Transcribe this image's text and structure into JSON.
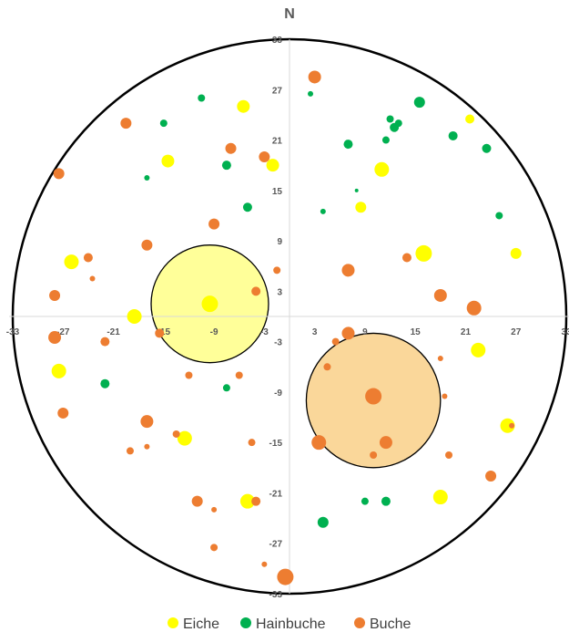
{
  "chart_data": {
    "type": "scatter",
    "title": "N",
    "xlim": [
      -33,
      33
    ],
    "ylim": [
      -33,
      33
    ],
    "x_ticks": [
      -33,
      -27,
      -21,
      -15,
      -9,
      -3,
      3,
      9,
      15,
      21,
      27,
      33
    ],
    "y_ticks": [
      33,
      27,
      21,
      15,
      9,
      3,
      -3,
      -9,
      -15,
      -21,
      -27,
      -33
    ],
    "grid": false,
    "legend_position": "bottom",
    "plot_boundary": "circle",
    "crown_circles": [
      {
        "x": -9.5,
        "y": 1.5,
        "r": 7,
        "color": "#FFFF99"
      },
      {
        "x": 10,
        "y": -10,
        "r": 8,
        "color": "#FAD79A"
      }
    ],
    "series": [
      {
        "name": "Eiche",
        "color": "#FFFF00",
        "points": [
          {
            "x": -5.5,
            "y": 25,
            "size": 7
          },
          {
            "x": -14.5,
            "y": 18.5,
            "size": 7
          },
          {
            "x": -2,
            "y": 18,
            "size": 7
          },
          {
            "x": 11,
            "y": 17.5,
            "size": 8
          },
          {
            "x": 8.5,
            "y": 13,
            "size": 6
          },
          {
            "x": 21.5,
            "y": 23.5,
            "size": 5
          },
          {
            "x": -26,
            "y": 6.5,
            "size": 8
          },
          {
            "x": 16,
            "y": 7.5,
            "size": 9
          },
          {
            "x": 27,
            "y": 7.5,
            "size": 6
          },
          {
            "x": -9.5,
            "y": 1.5,
            "size": 9
          },
          {
            "x": -18.5,
            "y": 0,
            "size": 8
          },
          {
            "x": 22.5,
            "y": -4,
            "size": 8
          },
          {
            "x": -27.5,
            "y": -6.5,
            "size": 8
          },
          {
            "x": 26,
            "y": -13,
            "size": 8
          },
          {
            "x": -12.5,
            "y": -14.5,
            "size": 8
          },
          {
            "x": -5,
            "y": -22,
            "size": 8
          },
          {
            "x": 18,
            "y": -21.5,
            "size": 8
          }
        ]
      },
      {
        "name": "Hainbuche",
        "color": "#00B050",
        "points": [
          {
            "x": -10.5,
            "y": 26,
            "size": 4
          },
          {
            "x": 2.5,
            "y": 26.5,
            "size": 3
          },
          {
            "x": 15.5,
            "y": 25.5,
            "size": 6
          },
          {
            "x": -15,
            "y": 23,
            "size": 4
          },
          {
            "x": 12,
            "y": 23.5,
            "size": 4
          },
          {
            "x": 13,
            "y": 23,
            "size": 4
          },
          {
            "x": 12.5,
            "y": 22.5,
            "size": 5
          },
          {
            "x": 19.5,
            "y": 21.5,
            "size": 5
          },
          {
            "x": 11.5,
            "y": 21,
            "size": 4
          },
          {
            "x": 7,
            "y": 20.5,
            "size": 5
          },
          {
            "x": 23.5,
            "y": 20,
            "size": 5
          },
          {
            "x": -7.5,
            "y": 18,
            "size": 5
          },
          {
            "x": -17,
            "y": 16.5,
            "size": 3
          },
          {
            "x": 8,
            "y": 15,
            "size": 2
          },
          {
            "x": -5,
            "y": 13,
            "size": 5
          },
          {
            "x": 4,
            "y": 12.5,
            "size": 3
          },
          {
            "x": 25,
            "y": 12,
            "size": 4
          },
          {
            "x": -22,
            "y": -8,
            "size": 5
          },
          {
            "x": -7.5,
            "y": -8.5,
            "size": 4
          },
          {
            "x": 9,
            "y": -22,
            "size": 4
          },
          {
            "x": 11.5,
            "y": -22,
            "size": 5
          },
          {
            "x": 4,
            "y": -24.5,
            "size": 6
          }
        ]
      },
      {
        "name": "Buche",
        "color": "#ED7D31",
        "points": [
          {
            "x": 3,
            "y": 28.5,
            "size": 7
          },
          {
            "x": -19.5,
            "y": 23,
            "size": 6
          },
          {
            "x": -7,
            "y": 20,
            "size": 6
          },
          {
            "x": -3,
            "y": 19,
            "size": 6
          },
          {
            "x": -27.5,
            "y": 17,
            "size": 6
          },
          {
            "x": -9,
            "y": 11,
            "size": 6
          },
          {
            "x": -17,
            "y": 8.5,
            "size": 6
          },
          {
            "x": -24,
            "y": 7,
            "size": 5
          },
          {
            "x": 14,
            "y": 7,
            "size": 5
          },
          {
            "x": 7,
            "y": 5.5,
            "size": 7
          },
          {
            "x": -1.5,
            "y": 5.5,
            "size": 4
          },
          {
            "x": -23.5,
            "y": 4.5,
            "size": 3
          },
          {
            "x": -4,
            "y": 3,
            "size": 5
          },
          {
            "x": -28,
            "y": 2.5,
            "size": 6
          },
          {
            "x": 18,
            "y": 2.5,
            "size": 7
          },
          {
            "x": 22,
            "y": 1,
            "size": 8
          },
          {
            "x": -15.5,
            "y": -2,
            "size": 5
          },
          {
            "x": 7,
            "y": -2,
            "size": 7
          },
          {
            "x": -28,
            "y": -2.5,
            "size": 7
          },
          {
            "x": -22,
            "y": -3,
            "size": 5
          },
          {
            "x": 5.5,
            "y": -3,
            "size": 4
          },
          {
            "x": 4.5,
            "y": -6,
            "size": 4
          },
          {
            "x": 18,
            "y": -5,
            "size": 3
          },
          {
            "x": -12,
            "y": -7,
            "size": 4
          },
          {
            "x": -6,
            "y": -7,
            "size": 4
          },
          {
            "x": 10,
            "y": -9.5,
            "size": 9
          },
          {
            "x": 18.5,
            "y": -9.5,
            "size": 3
          },
          {
            "x": -27,
            "y": -11.5,
            "size": 6
          },
          {
            "x": -17,
            "y": -12.5,
            "size": 7
          },
          {
            "x": 26.5,
            "y": -13,
            "size": 3
          },
          {
            "x": -13.5,
            "y": -14,
            "size": 4
          },
          {
            "x": -4.5,
            "y": -15,
            "size": 4
          },
          {
            "x": 3.5,
            "y": -15,
            "size": 8
          },
          {
            "x": 11.5,
            "y": -15,
            "size": 7
          },
          {
            "x": -17,
            "y": -15.5,
            "size": 3
          },
          {
            "x": -19,
            "y": -16,
            "size": 4
          },
          {
            "x": 10,
            "y": -16.5,
            "size": 4
          },
          {
            "x": 19,
            "y": -16.5,
            "size": 4
          },
          {
            "x": 24,
            "y": -19,
            "size": 6
          },
          {
            "x": -11,
            "y": -22,
            "size": 6
          },
          {
            "x": -4,
            "y": -22,
            "size": 5
          },
          {
            "x": -9,
            "y": -23,
            "size": 3
          },
          {
            "x": -9,
            "y": -27.5,
            "size": 4
          },
          {
            "x": -3,
            "y": -29.5,
            "size": 3
          },
          {
            "x": -0.5,
            "y": -31,
            "size": 9
          }
        ]
      }
    ]
  }
}
